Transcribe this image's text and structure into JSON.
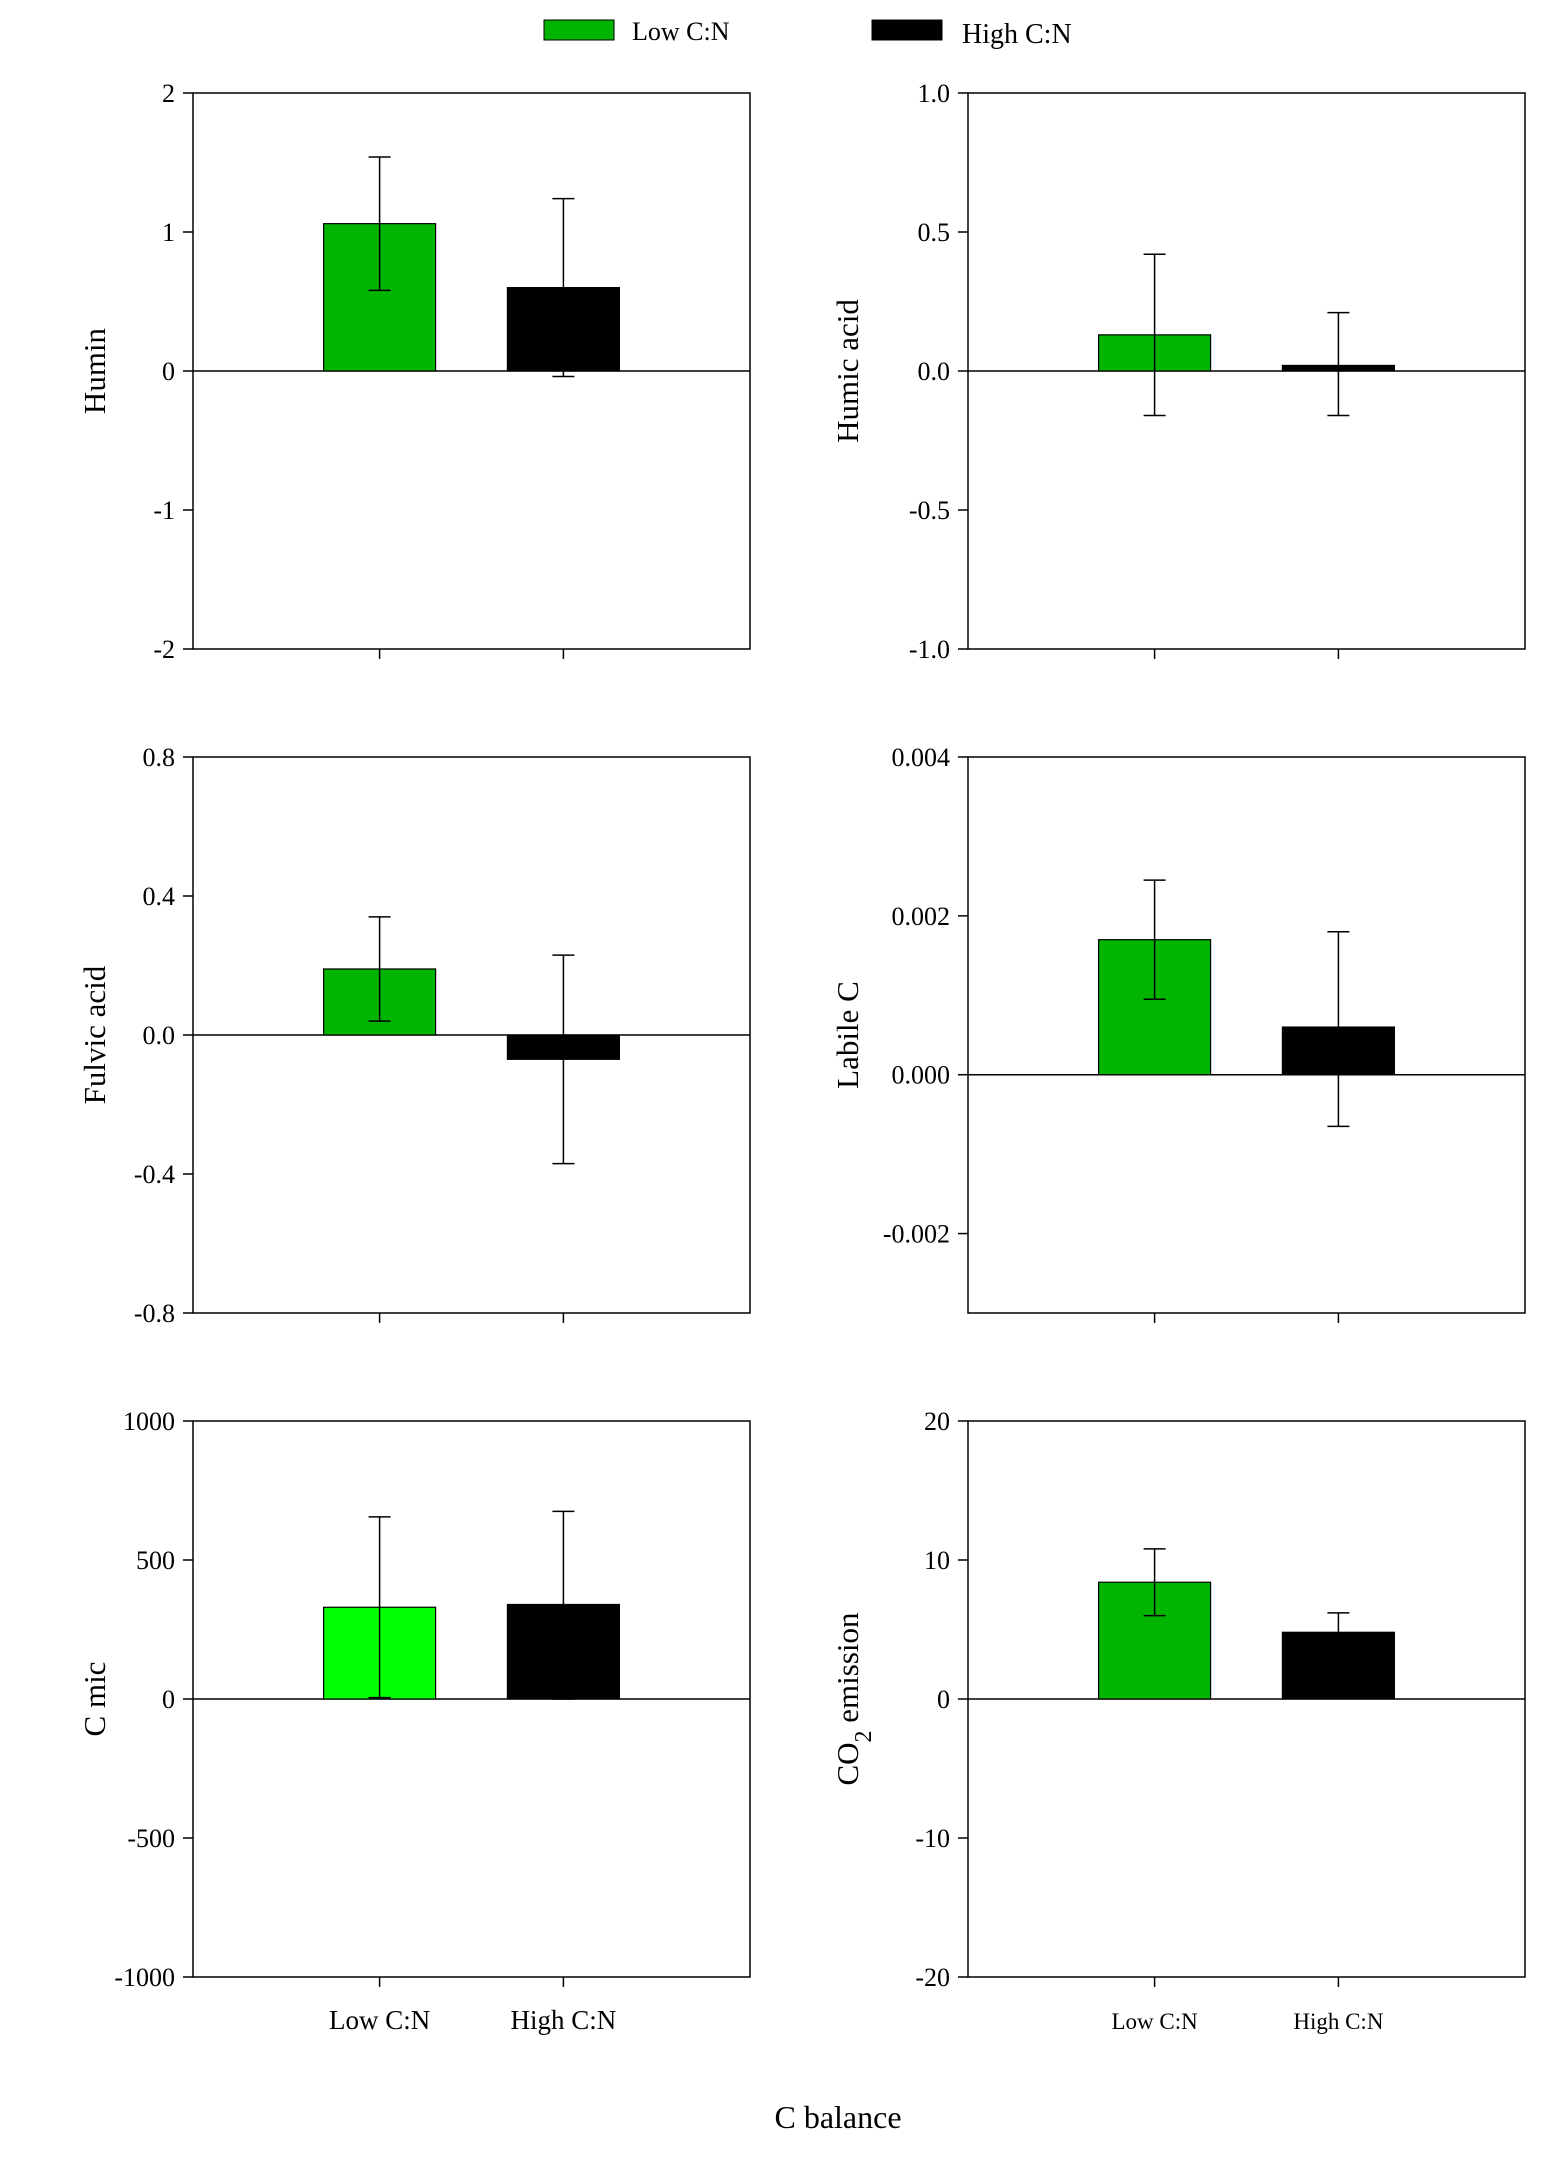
{
  "legend": [
    {
      "label": "Low C:N",
      "color": "#00b400"
    },
    {
      "label": "High C:N",
      "color": "#000000"
    }
  ],
  "x_title": "C balance",
  "chart_data": [
    {
      "type": "bar",
      "ylabel": "Humin",
      "ylim": [
        -2,
        2
      ],
      "yticks": [
        "2",
        "1",
        "0",
        "-1",
        "-2"
      ],
      "tick_values": [
        2,
        1,
        0,
        -1,
        -2
      ],
      "categories": [
        "Low C:N",
        "High C:N"
      ],
      "show_xlabels": false,
      "values": [
        1.06,
        0.6
      ],
      "err_high": [
        1.54,
        1.24
      ],
      "err_low": [
        0.58,
        -0.04
      ],
      "colors": [
        "#00b400",
        "#000000"
      ]
    },
    {
      "type": "bar",
      "ylabel": "Humic acid",
      "ylim": [
        -1,
        1
      ],
      "yticks": [
        "1.0",
        "0.5",
        "0.0",
        "-0.5",
        "-1.0"
      ],
      "tick_values": [
        1,
        0.5,
        0,
        -0.5,
        -1
      ],
      "categories": [
        "Low C:N",
        "High C:N"
      ],
      "show_xlabels": false,
      "values": [
        0.13,
        0.02
      ],
      "err_high": [
        0.42,
        0.21
      ],
      "err_low": [
        -0.16,
        -0.16
      ],
      "colors": [
        "#00b400",
        "#000000"
      ]
    },
    {
      "type": "bar",
      "ylabel": "Fulvic acid",
      "ylim": [
        -0.8,
        0.8
      ],
      "yticks": [
        "0.8",
        "0.4",
        "0.0",
        "-0.4",
        "-0.8"
      ],
      "tick_values": [
        0.8,
        0.4,
        0,
        -0.4,
        -0.8
      ],
      "categories": [
        "Low C:N",
        "High C:N"
      ],
      "show_xlabels": false,
      "values": [
        0.19,
        -0.07
      ],
      "err_high": [
        0.34,
        0.23
      ],
      "err_low": [
        0.04,
        -0.37
      ],
      "colors": [
        "#00b400",
        "#000000"
      ]
    },
    {
      "type": "bar",
      "ylabel": "Labile C",
      "ylim": [
        -0.003,
        0.004
      ],
      "yticks": [
        "0.004",
        "0.002",
        "0.000",
        "-0.002"
      ],
      "tick_values": [
        0.004,
        0.002,
        0,
        -0.002
      ],
      "categories": [
        "Low C:N",
        "High C:N"
      ],
      "show_xlabels": false,
      "values": [
        0.0017,
        0.0006
      ],
      "err_high": [
        0.00245,
        0.0018
      ],
      "err_low": [
        0.00095,
        -0.00065
      ],
      "colors": [
        "#00b400",
        "#000000"
      ]
    },
    {
      "type": "bar",
      "ylabel": "C mic",
      "ylim": [
        -1000,
        1000
      ],
      "yticks": [
        "1000",
        "500",
        "0",
        "-500",
        "-1000"
      ],
      "tick_values": [
        1000,
        500,
        0,
        -500,
        -1000
      ],
      "categories": [
        "Low C:N",
        "High C:N"
      ],
      "show_xlabels": true,
      "values": [
        330,
        340
      ],
      "err_high": [
        655,
        675
      ],
      "err_low": [
        5,
        0
      ],
      "colors": [
        "#00ff00",
        "#000000"
      ]
    },
    {
      "type": "bar",
      "ylabel": "CO",
      "ylabel_sub": "2",
      "ylabel_rest": " emission",
      "ylim": [
        -20,
        20
      ],
      "yticks": [
        "20",
        "10",
        "0",
        "-10",
        "-20"
      ],
      "tick_values": [
        20,
        10,
        0,
        -10,
        -20
      ],
      "categories": [
        "Low C:N",
        "High C:N"
      ],
      "show_xlabels": true,
      "values": [
        8.4,
        4.8
      ],
      "err_high": [
        10.8,
        6.2
      ],
      "err_low": [
        6.0,
        3.4
      ],
      "colors": [
        "#00b400",
        "#000000"
      ]
    }
  ]
}
